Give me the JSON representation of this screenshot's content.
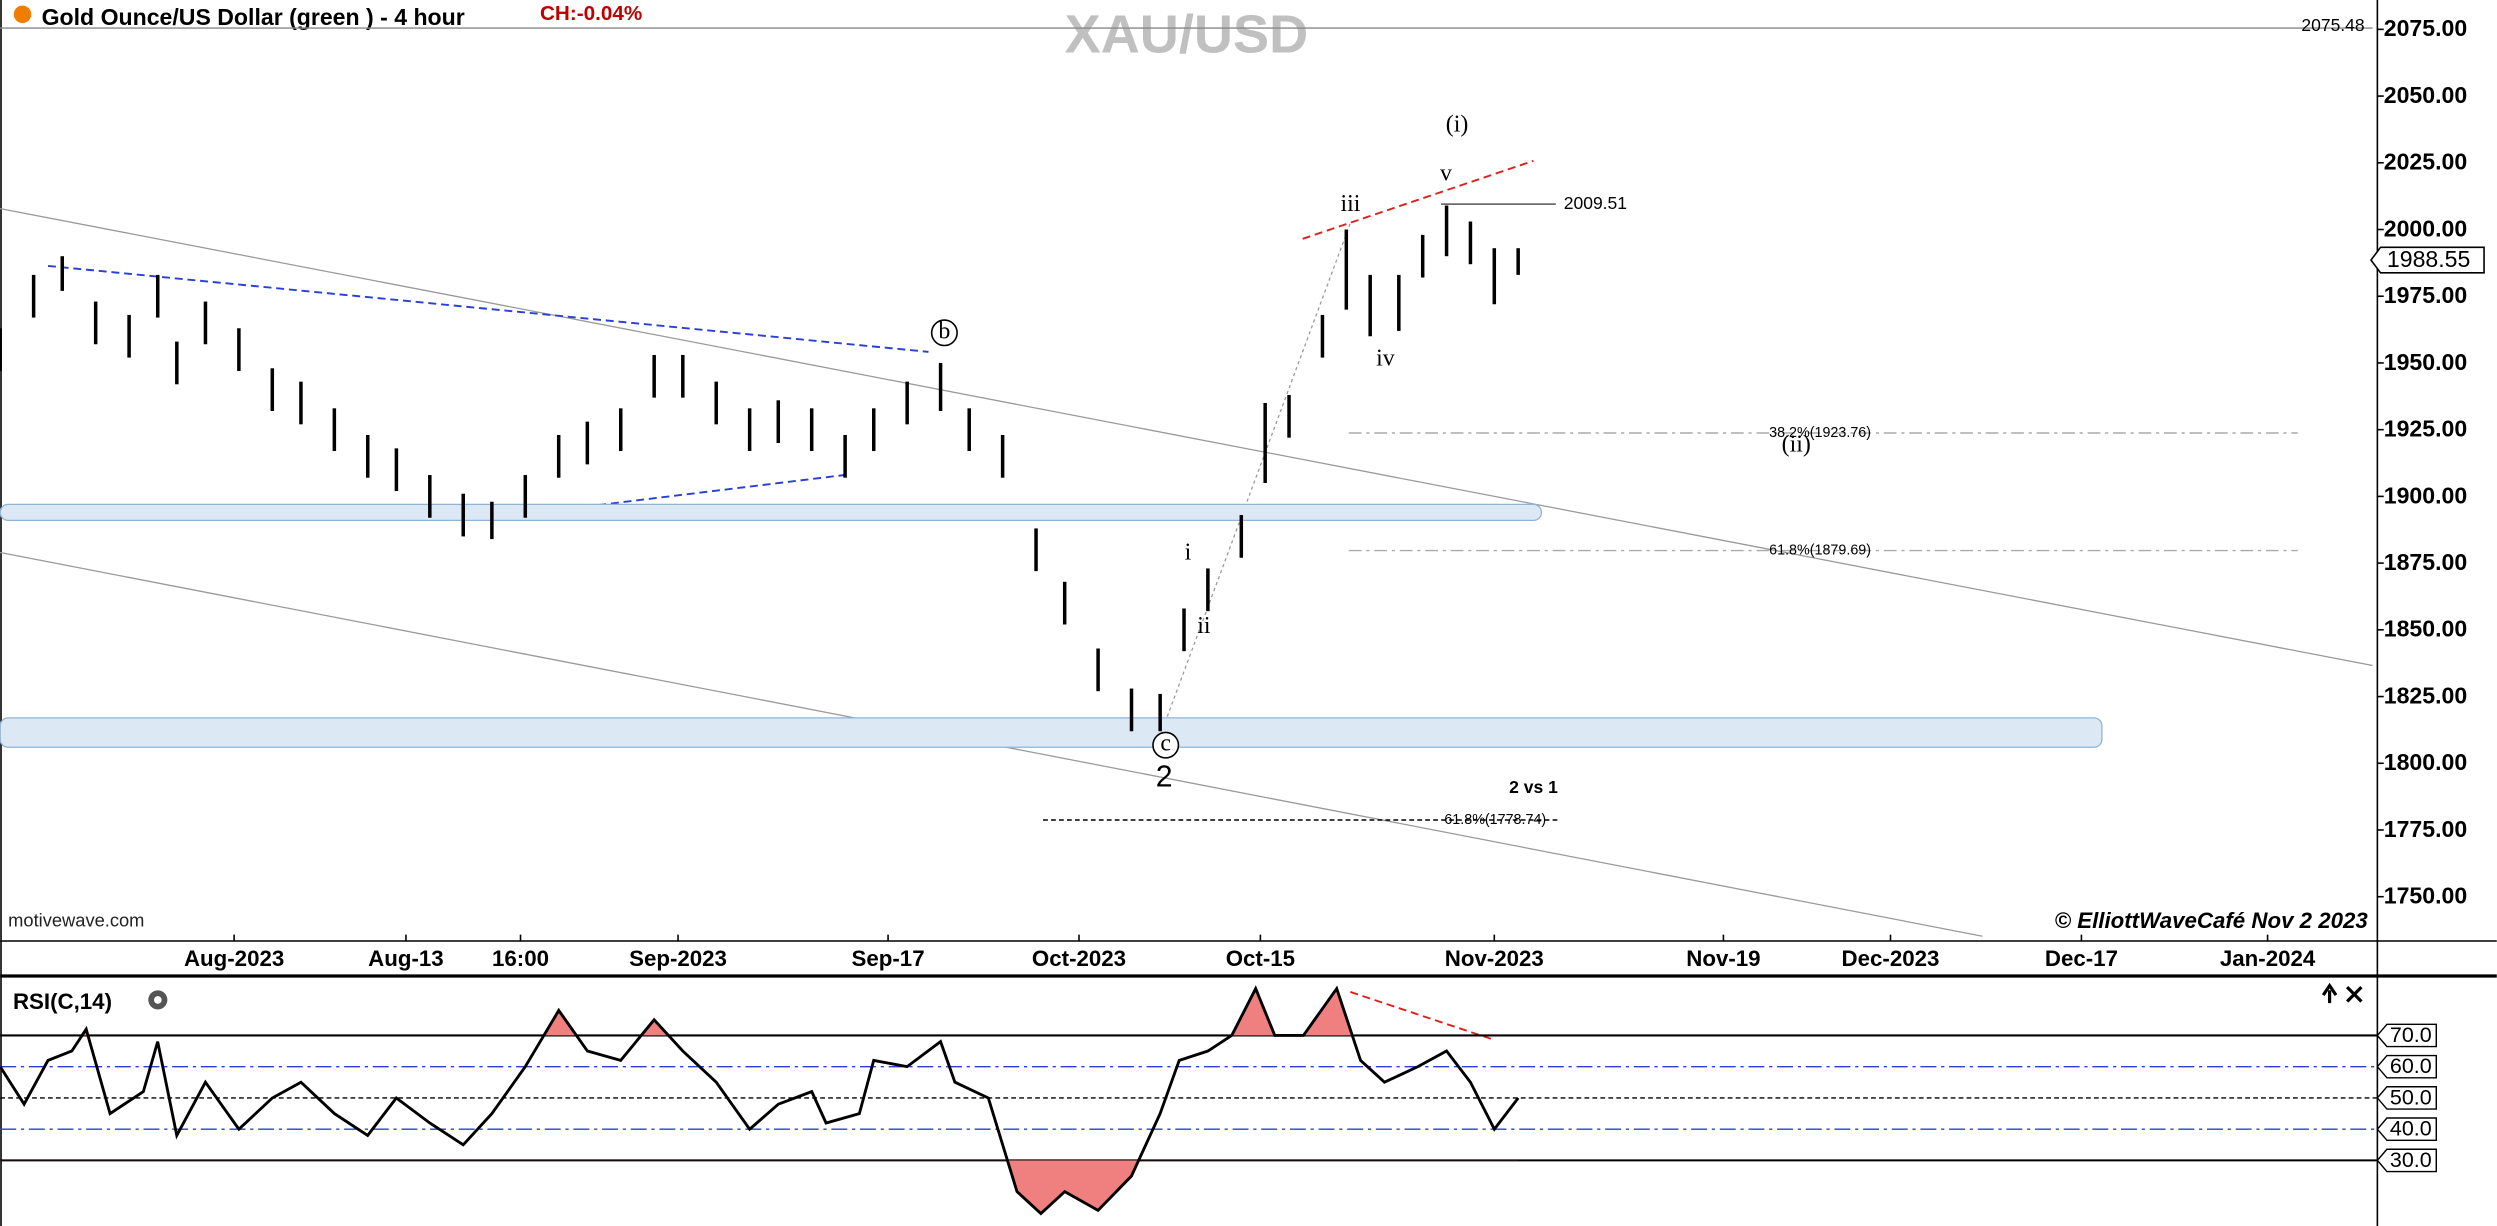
{
  "chart_data": [
    {
      "type": "range_bar",
      "title": "Gold Ounce/US Dollar (green ) - 4 hour",
      "change": "CH:-0.04%",
      "watermark": "XAU/USD",
      "source": "motivewave.com",
      "credit": "© ElliottWaveCafé Nov 2 2023",
      "color": "#000000",
      "x": [
        0,
        7,
        13,
        20,
        27,
        33,
        37,
        43,
        50,
        57,
        63,
        70,
        77,
        83,
        90,
        97,
        103,
        110,
        117,
        123,
        130,
        137,
        143,
        150,
        157,
        163,
        170,
        177,
        183,
        190,
        197,
        203,
        210,
        217,
        223,
        230,
        237,
        243,
        248,
        253,
        260,
        265,
        270,
        277,
        282,
        287,
        293,
        298,
        303,
        308,
        313,
        318
      ],
      "high": [
        1963,
        1983,
        1990,
        1973,
        1968,
        1983,
        1958,
        1973,
        1963,
        1948,
        1943,
        1933,
        1923,
        1918,
        1908,
        1901,
        1898,
        1908,
        1923,
        1928,
        1933,
        1953,
        1953,
        1943,
        1933,
        1936,
        1933,
        1923,
        1933,
        1943,
        1950,
        1933,
        1923,
        1888,
        1868,
        1843,
        1828,
        1826,
        1858,
        1873,
        1893,
        1935,
        1938,
        1968,
        2000,
        1983,
        1983,
        1998,
        2009,
        2003,
        1993,
        1993
      ],
      "low": [
        1947,
        1967,
        1977,
        1957,
        1952,
        1967,
        1942,
        1957,
        1947,
        1932,
        1927,
        1917,
        1907,
        1902,
        1892,
        1885,
        1884,
        1892,
        1907,
        1912,
        1917,
        1937,
        1937,
        1927,
        1917,
        1920,
        1917,
        1907,
        1917,
        1927,
        1932,
        1917,
        1907,
        1872,
        1852,
        1827,
        1812,
        1812,
        1842,
        1857,
        1877,
        1905,
        1922,
        1952,
        1970,
        1960,
        1962,
        1982,
        1990,
        1987,
        1972,
        1983
      ],
      "xlim": [
        0,
        498
      ],
      "xticks": [
        {
          "value": 49,
          "label": "Aug-2023"
        },
        {
          "value": 85,
          "label": "Aug-13"
        },
        {
          "value": 109,
          "label": "16:00"
        },
        {
          "value": 142,
          "label": "Sep-2023"
        },
        {
          "value": 186,
          "label": "Sep-17"
        },
        {
          "value": 226,
          "label": "Oct-2023"
        },
        {
          "value": 264,
          "label": "Oct-15"
        },
        {
          "value": 313,
          "label": "Nov-2023"
        },
        {
          "value": 361,
          "label": "Nov-19"
        },
        {
          "value": 396,
          "label": "Dec-2023"
        },
        {
          "value": 436,
          "label": "Dec-17"
        },
        {
          "value": 475,
          "label": "Jan-2024"
        }
      ],
      "ylim": [
        1734,
        2086
      ],
      "yticks": [
        {
          "value": 1750,
          "label": "1750.00"
        },
        {
          "value": 1775,
          "label": "1775.00"
        },
        {
          "value": 1800,
          "label": "1800.00"
        },
        {
          "value": 1825,
          "label": "1825.00"
        },
        {
          "value": 1850,
          "label": "1850.00"
        },
        {
          "value": 1875,
          "label": "1875.00"
        },
        {
          "value": 1900,
          "label": "1900.00"
        },
        {
          "value": 1925,
          "label": "1925.00"
        },
        {
          "value": 1950,
          "label": "1950.00"
        },
        {
          "value": 1975,
          "label": "1975.00"
        },
        {
          "value": 2000,
          "label": "2000.00"
        },
        {
          "value": 2025,
          "label": "2025.00"
        },
        {
          "value": 2050,
          "label": "2050.00"
        },
        {
          "value": 2075,
          "label": "2075.00"
        }
      ],
      "last_price": 1988.55,
      "levels": [
        2075.48,
        2009.51,
        {
          "value": 1923.76,
          "label": "38.2%(1923.76)"
        },
        {
          "value": 1879.69,
          "label": "61.8%(1879.69)"
        },
        {
          "value": 1778.74,
          "label": "61.8%(1778.74)"
        }
      ],
      "zones": [
        {
          "low": 1891,
          "high": 1897
        },
        {
          "low": 1806,
          "high": 1817
        }
      ],
      "annotations": [
        "(i)",
        "v",
        "iii",
        "iv",
        "(ii)",
        "i",
        "ii",
        "b",
        "c",
        "2",
        "2 vs 1"
      ]
    },
    {
      "type": "line",
      "title": "RSI(C,14)",
      "color": "#000000",
      "fill_color": "#f08080",
      "x": [
        0,
        5,
        10,
        15,
        18,
        23,
        30,
        33,
        37,
        43,
        50,
        57,
        63,
        70,
        77,
        83,
        90,
        97,
        103,
        110,
        117,
        123,
        130,
        137,
        143,
        150,
        157,
        163,
        170,
        173,
        180,
        183,
        190,
        197,
        200,
        207,
        213,
        218,
        223,
        230,
        237,
        243,
        247,
        253,
        258,
        263,
        267,
        273,
        280,
        285,
        290,
        297,
        303,
        308,
        313,
        318
      ],
      "values": [
        60,
        48,
        62,
        65,
        72,
        45,
        52,
        68,
        38,
        55,
        40,
        50,
        55,
        45,
        38,
        50,
        42,
        35,
        45,
        60,
        78,
        65,
        62,
        75,
        65,
        55,
        40,
        48,
        52,
        42,
        45,
        62,
        60,
        68,
        55,
        50,
        20,
        13,
        20,
        14,
        25,
        45,
        62,
        65,
        70,
        85,
        70,
        70,
        85,
        62,
        55,
        60,
        65,
        55,
        40,
        50
      ],
      "ylim": [
        9,
        88
      ],
      "yticks": [
        {
          "value": 30,
          "label": "30.0"
        },
        {
          "value": 40,
          "label": "40.0"
        },
        {
          "value": 50,
          "label": "50.0"
        },
        {
          "value": 60,
          "label": "60.0"
        },
        {
          "value": 70,
          "label": "70.0"
        }
      ],
      "overbought": 70,
      "oversold": 30
    }
  ]
}
